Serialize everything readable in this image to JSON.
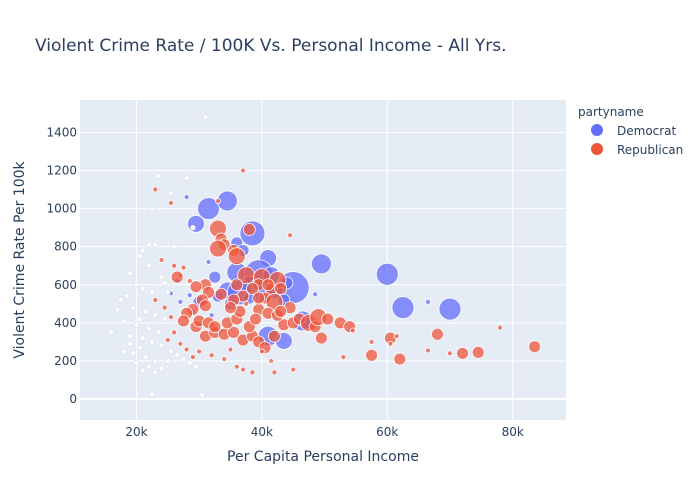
{
  "chart_data": {
    "type": "scatter",
    "title": "Violent Crime Rate / 100K Vs. Personal Income - All Yrs.",
    "xlabel": "Per Capita Personal Income",
    "ylabel": "Violent Crime Rate Per 100k",
    "xlim": [
      11000,
      88500
    ],
    "ylim": [
      -110,
      1570
    ],
    "x_ticks": [
      {
        "value": 20000,
        "label": "20k"
      },
      {
        "value": 40000,
        "label": "40k"
      },
      {
        "value": 60000,
        "label": "60k"
      },
      {
        "value": 80000,
        "label": "80k"
      }
    ],
    "y_ticks": [
      0,
      200,
      400,
      600,
      800,
      1000,
      1200,
      1400
    ],
    "grid": true,
    "legend": {
      "title": "partyname",
      "position": "right"
    },
    "series": [
      {
        "name": "Democrat",
        "color": "#636efa",
        "points": [
          [
            31500,
            1000,
            5
          ],
          [
            34500,
            1040,
            4
          ],
          [
            29500,
            920,
            3
          ],
          [
            38500,
            870,
            6
          ],
          [
            36000,
            820,
            2
          ],
          [
            37000,
            780,
            2
          ],
          [
            41000,
            740,
            3
          ],
          [
            49500,
            710,
            4
          ],
          [
            60000,
            655,
            5
          ],
          [
            36000,
            665,
            4
          ],
          [
            39500,
            655,
            7
          ],
          [
            45000,
            585,
            8
          ],
          [
            40000,
            560,
            5
          ],
          [
            38000,
            600,
            3
          ],
          [
            42000,
            570,
            3
          ],
          [
            62500,
            480,
            5
          ],
          [
            70000,
            472,
            5
          ],
          [
            46500,
            410,
            4
          ],
          [
            41000,
            330,
            4
          ],
          [
            43500,
            305,
            3
          ],
          [
            34500,
            570,
            3
          ],
          [
            35000,
            500,
            2
          ],
          [
            30000,
            510,
            2
          ],
          [
            33000,
            540,
            2
          ],
          [
            27000,
            510,
            1
          ],
          [
            25500,
            555,
            1
          ],
          [
            28500,
            545,
            1
          ],
          [
            32000,
            440,
            1
          ],
          [
            43500,
            520,
            2
          ],
          [
            36500,
            560,
            6
          ],
          [
            38000,
            530,
            2
          ],
          [
            26500,
            620,
            1
          ],
          [
            31500,
            720,
            1
          ],
          [
            28000,
            1060,
            1
          ],
          [
            66500,
            510,
            1
          ],
          [
            48500,
            550,
            1
          ],
          [
            32500,
            640,
            2
          ],
          [
            47000,
            400,
            2
          ],
          [
            33500,
            360,
            1
          ],
          [
            29000,
            460,
            1
          ],
          [
            44000,
            610,
            2
          ],
          [
            41500,
            650,
            3
          ]
        ]
      },
      {
        "name": "Republican",
        "color": "#ef553b",
        "points": [
          [
            33000,
            895,
            3
          ],
          [
            38000,
            890,
            2
          ],
          [
            33500,
            840,
            2
          ],
          [
            34000,
            810,
            2
          ],
          [
            33000,
            790,
            3
          ],
          [
            35500,
            780,
            2
          ],
          [
            36000,
            750,
            3
          ],
          [
            44500,
            860,
            1
          ],
          [
            37500,
            650,
            3
          ],
          [
            40000,
            640,
            3
          ],
          [
            42500,
            625,
            3
          ],
          [
            39500,
            600,
            2
          ],
          [
            41500,
            575,
            2
          ],
          [
            36000,
            600,
            2
          ],
          [
            38500,
            580,
            2
          ],
          [
            33500,
            550,
            2
          ],
          [
            37000,
            540,
            2
          ],
          [
            35500,
            520,
            2
          ],
          [
            40500,
            530,
            2
          ],
          [
            42000,
            510,
            3
          ],
          [
            44500,
            480,
            2
          ],
          [
            39500,
            470,
            2
          ],
          [
            31000,
            600,
            2
          ],
          [
            31500,
            560,
            2
          ],
          [
            29500,
            590,
            2
          ],
          [
            30500,
            520,
            2
          ],
          [
            31000,
            490,
            2
          ],
          [
            29000,
            470,
            2
          ],
          [
            28000,
            450,
            2
          ],
          [
            27500,
            410,
            2
          ],
          [
            29500,
            380,
            2
          ],
          [
            31000,
            330,
            2
          ],
          [
            32500,
            350,
            2
          ],
          [
            34000,
            340,
            2
          ],
          [
            35500,
            350,
            2
          ],
          [
            37000,
            310,
            2
          ],
          [
            38500,
            330,
            2
          ],
          [
            39500,
            300,
            2
          ],
          [
            40500,
            270,
            2
          ],
          [
            42000,
            330,
            2
          ],
          [
            43500,
            390,
            2
          ],
          [
            45000,
            400,
            2
          ],
          [
            46000,
            420,
            2
          ],
          [
            47500,
            400,
            3
          ],
          [
            48500,
            380,
            2
          ],
          [
            49000,
            430,
            3
          ],
          [
            49500,
            320,
            2
          ],
          [
            50500,
            420,
            2
          ],
          [
            52500,
            400,
            2
          ],
          [
            54000,
            380,
            2
          ],
          [
            54500,
            360,
            1
          ],
          [
            53000,
            220,
            1
          ],
          [
            57500,
            300,
            1
          ],
          [
            57500,
            230,
            2
          ],
          [
            60500,
            320,
            2
          ],
          [
            61500,
            330,
            1
          ],
          [
            60500,
            290,
            1
          ],
          [
            62000,
            210,
            2
          ],
          [
            66500,
            255,
            1
          ],
          [
            68000,
            340,
            2
          ],
          [
            70000,
            240,
            1
          ],
          [
            72000,
            240,
            2
          ],
          [
            74500,
            245,
            2
          ],
          [
            78000,
            375,
            1
          ],
          [
            83500,
            275,
            2
          ],
          [
            30000,
            250,
            1
          ],
          [
            32000,
            230,
            1
          ],
          [
            34000,
            210,
            1
          ],
          [
            35000,
            260,
            1
          ],
          [
            36000,
            170,
            1
          ],
          [
            37000,
            155,
            1
          ],
          [
            38500,
            140,
            1
          ],
          [
            40000,
            250,
            1
          ],
          [
            41500,
            200,
            1
          ],
          [
            42000,
            140,
            1
          ],
          [
            45000,
            155,
            1
          ],
          [
            27000,
            650,
            1
          ],
          [
            27500,
            690,
            1
          ],
          [
            26500,
            640,
            2
          ],
          [
            25500,
            1030,
            1
          ],
          [
            23000,
            1100,
            1
          ],
          [
            26000,
            700,
            1
          ],
          [
            24000,
            730,
            1
          ],
          [
            23000,
            520,
            1
          ],
          [
            24500,
            480,
            1
          ],
          [
            25500,
            430,
            1
          ],
          [
            26000,
            350,
            1
          ],
          [
            25000,
            310,
            1
          ],
          [
            27000,
            290,
            1
          ],
          [
            28000,
            260,
            1
          ],
          [
            29000,
            220,
            1
          ],
          [
            37000,
            1200,
            1
          ],
          [
            33000,
            1040,
            1
          ],
          [
            30000,
            410,
            2
          ],
          [
            31500,
            400,
            2
          ],
          [
            32500,
            380,
            2
          ],
          [
            34500,
            400,
            2
          ],
          [
            36000,
            420,
            2
          ],
          [
            38000,
            380,
            2
          ],
          [
            39000,
            420,
            2
          ],
          [
            41000,
            450,
            2
          ],
          [
            42500,
            440,
            2
          ],
          [
            43000,
            460,
            2
          ],
          [
            36500,
            460,
            2
          ],
          [
            35000,
            480,
            2
          ],
          [
            37500,
            500,
            1
          ],
          [
            39500,
            530,
            2
          ],
          [
            41000,
            600,
            2
          ],
          [
            43000,
            580,
            2
          ],
          [
            28500,
            620,
            1
          ]
        ]
      },
      {
        "name": "",
        "color": "#ffffff",
        "points": [
          [
            31000,
            1480,
            1
          ],
          [
            23500,
            1170,
            1
          ],
          [
            28000,
            1160,
            1
          ],
          [
            25500,
            1080,
            1
          ],
          [
            22500,
            1000,
            1
          ],
          [
            23000,
            810,
            1
          ],
          [
            21000,
            780,
            1
          ],
          [
            20500,
            750,
            1
          ],
          [
            22000,
            700,
            1
          ],
          [
            19000,
            660,
            1
          ],
          [
            20000,
            600,
            1
          ],
          [
            21000,
            580,
            1
          ],
          [
            22500,
            560,
            1
          ],
          [
            18500,
            540,
            1
          ],
          [
            17500,
            520,
            1
          ],
          [
            19500,
            480,
            1
          ],
          [
            21500,
            460,
            1
          ],
          [
            23000,
            440,
            1
          ],
          [
            24500,
            420,
            1
          ],
          [
            18000,
            410,
            1
          ],
          [
            20000,
            390,
            1
          ],
          [
            22000,
            370,
            1
          ],
          [
            23500,
            350,
            1
          ],
          [
            16000,
            350,
            1
          ],
          [
            19000,
            330,
            1
          ],
          [
            21000,
            320,
            1
          ],
          [
            22500,
            300,
            1
          ],
          [
            24000,
            280,
            1
          ],
          [
            20500,
            270,
            1
          ],
          [
            18000,
            250,
            1
          ],
          [
            19500,
            240,
            1
          ],
          [
            21500,
            220,
            1
          ],
          [
            23000,
            200,
            1
          ],
          [
            20000,
            190,
            1
          ],
          [
            22000,
            170,
            1
          ],
          [
            24000,
            160,
            1
          ],
          [
            21000,
            150,
            1
          ],
          [
            23000,
            140,
            1
          ],
          [
            25500,
            250,
            1
          ],
          [
            26500,
            230,
            1
          ],
          [
            27500,
            210,
            1
          ],
          [
            28500,
            190,
            1
          ],
          [
            29500,
            170,
            1
          ],
          [
            25000,
            200,
            1
          ],
          [
            24500,
            610,
            1
          ],
          [
            26000,
            800,
            1
          ],
          [
            24000,
            640,
            1
          ],
          [
            20500,
            420,
            1
          ],
          [
            30500,
            20,
            1
          ],
          [
            22500,
            25,
            1
          ],
          [
            29000,
            900,
            1
          ],
          [
            22000,
            810,
            1
          ],
          [
            25000,
            560,
            1
          ],
          [
            19000,
            290,
            1
          ],
          [
            17000,
            470,
            1
          ]
        ]
      }
    ]
  }
}
